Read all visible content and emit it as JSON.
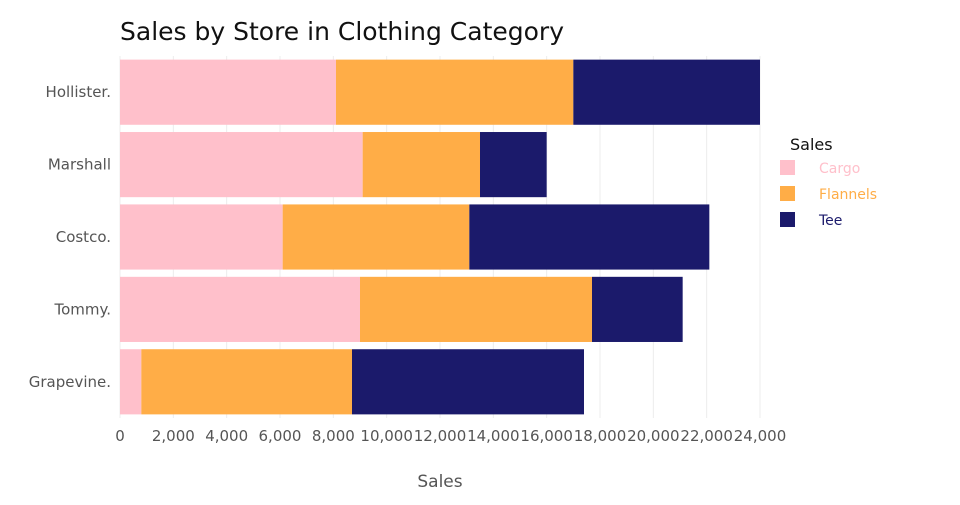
{
  "chart_data": {
    "type": "bar",
    "orientation": "horizontal",
    "stacked": true,
    "title": "Sales by Store in Clothing Category",
    "xlabel": "Sales",
    "ylabel": "",
    "categories": [
      "Hollister.",
      "Marshall",
      "Costco.",
      "Tommy.",
      "Grapevine."
    ],
    "series": [
      {
        "name": "Cargo",
        "color": "#FFC0CB",
        "values": [
          8100,
          9100,
          6100,
          9000,
          800
        ]
      },
      {
        "name": "Flannels",
        "color": "#FFAD47",
        "values": [
          8900,
          4400,
          7000,
          8700,
          7900
        ]
      },
      {
        "name": "Tee",
        "color": "#1B1A6B",
        "values": [
          7000,
          2500,
          9000,
          3400,
          8700
        ]
      }
    ],
    "xlim": [
      0,
      24000
    ],
    "xticks": [
      0,
      2000,
      4000,
      6000,
      8000,
      10000,
      12000,
      14000,
      16000,
      18000,
      20000,
      22000,
      24000
    ],
    "xtick_labels": [
      "0",
      "2,000",
      "4,000",
      "6,000",
      "8,000",
      "10,000",
      "12,000",
      "14,000",
      "16,000",
      "18,000",
      "20,000",
      "22,000",
      "24,000"
    ],
    "grid": true,
    "legend": {
      "title": "Sales",
      "placement": "right"
    }
  }
}
